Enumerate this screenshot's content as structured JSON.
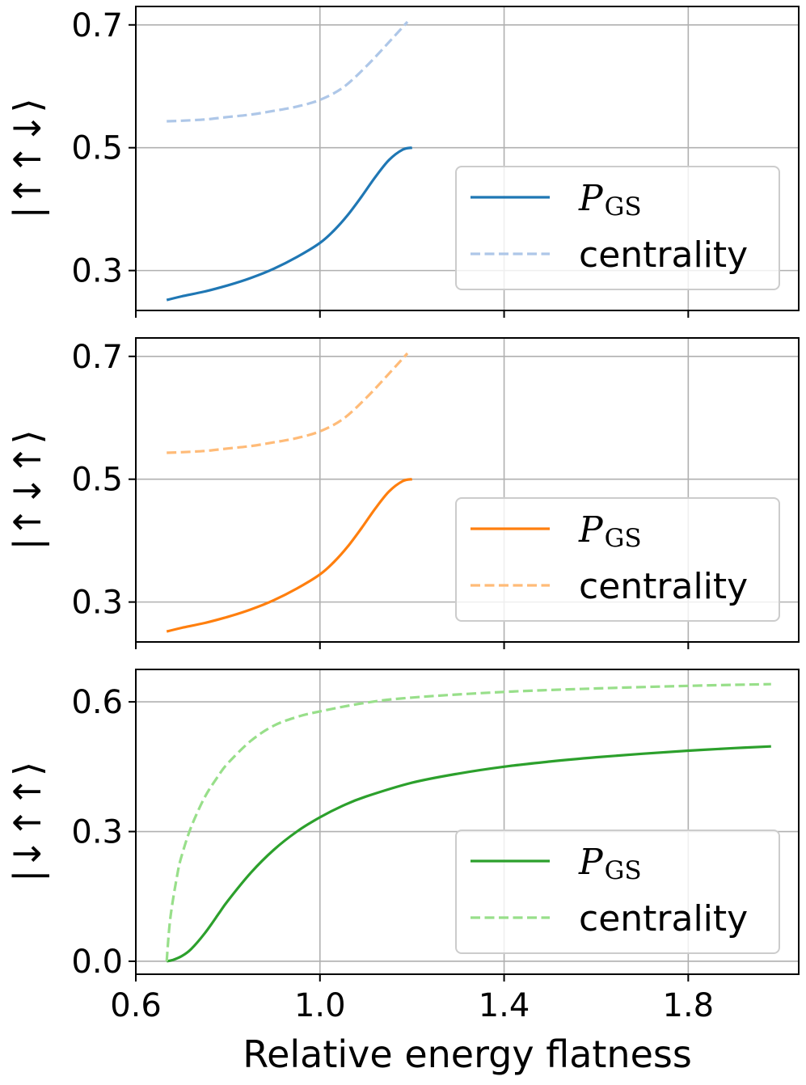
{
  "figure": {
    "xlabel": "Relative energy flatness",
    "x_ticks": [
      0.6,
      1.0,
      1.4,
      1.8
    ],
    "x_tick_labels": [
      "0.6",
      "1.0",
      "1.4",
      "1.8"
    ],
    "xlim": [
      0.6,
      2.04
    ]
  },
  "chart_data": [
    {
      "type": "line",
      "ylabel": "|↑↑↓⟩",
      "ylim": [
        0.235,
        0.73
      ],
      "y_ticks": [
        0.3,
        0.5,
        0.7
      ],
      "y_tick_labels": [
        "0.3",
        "0.5",
        "0.7"
      ],
      "grid": true,
      "legend_position": "lower-right",
      "series": [
        {
          "name": "P_GS",
          "label_main": "P",
          "label_sub": "GS",
          "style": "solid",
          "color": "#1f77b4",
          "x": [
            0.667,
            0.7,
            0.75,
            0.8,
            0.85,
            0.9,
            0.95,
            1.0,
            1.03,
            1.06,
            1.09,
            1.12,
            1.15,
            1.18,
            1.2
          ],
          "y": [
            0.252,
            0.258,
            0.266,
            0.276,
            0.288,
            0.303,
            0.322,
            0.345,
            0.365,
            0.39,
            0.42,
            0.452,
            0.48,
            0.497,
            0.5
          ]
        },
        {
          "name": "centrality",
          "label_main": "centrality",
          "style": "dashed",
          "color": "#aec7e8",
          "x": [
            0.667,
            0.7,
            0.75,
            0.8,
            0.85,
            0.9,
            0.95,
            1.0,
            1.05,
            1.1,
            1.15,
            1.19
          ],
          "y": [
            0.543,
            0.544,
            0.546,
            0.55,
            0.554,
            0.56,
            0.567,
            0.578,
            0.598,
            0.632,
            0.672,
            0.705
          ]
        }
      ]
    },
    {
      "type": "line",
      "ylabel": "|↑↓↑⟩",
      "ylim": [
        0.235,
        0.73
      ],
      "y_ticks": [
        0.3,
        0.5,
        0.7
      ],
      "y_tick_labels": [
        "0.3",
        "0.5",
        "0.7"
      ],
      "grid": true,
      "legend_position": "lower-right",
      "series": [
        {
          "name": "P_GS",
          "label_main": "P",
          "label_sub": "GS",
          "style": "solid",
          "color": "#ff7f0e",
          "x": [
            0.667,
            0.7,
            0.75,
            0.8,
            0.85,
            0.9,
            0.95,
            1.0,
            1.03,
            1.06,
            1.09,
            1.12,
            1.15,
            1.18,
            1.2
          ],
          "y": [
            0.252,
            0.258,
            0.266,
            0.276,
            0.288,
            0.303,
            0.322,
            0.345,
            0.365,
            0.39,
            0.42,
            0.452,
            0.48,
            0.497,
            0.5
          ]
        },
        {
          "name": "centrality",
          "label_main": "centrality",
          "style": "dashed",
          "color": "#ffbb78",
          "x": [
            0.667,
            0.7,
            0.75,
            0.8,
            0.85,
            0.9,
            0.95,
            1.0,
            1.05,
            1.1,
            1.15,
            1.19
          ],
          "y": [
            0.543,
            0.544,
            0.546,
            0.55,
            0.554,
            0.56,
            0.567,
            0.578,
            0.598,
            0.632,
            0.672,
            0.705
          ]
        }
      ]
    },
    {
      "type": "line",
      "ylabel": "|↓↑↑⟩",
      "ylim": [
        -0.03,
        0.675
      ],
      "y_ticks": [
        0.0,
        0.3,
        0.6
      ],
      "y_tick_labels": [
        "0.0",
        "0.3",
        "0.6"
      ],
      "grid": true,
      "legend_position": "lower-right",
      "series": [
        {
          "name": "P_GS",
          "label_main": "P",
          "label_sub": "GS",
          "style": "solid",
          "color": "#2ca02c",
          "x": [
            0.667,
            0.68,
            0.7,
            0.72,
            0.75,
            0.78,
            0.8,
            0.85,
            0.9,
            0.95,
            1.0,
            1.05,
            1.1,
            1.2,
            1.3,
            1.4,
            1.5,
            1.6,
            1.7,
            1.8,
            1.9,
            1.98
          ],
          "y": [
            0.0,
            0.003,
            0.012,
            0.028,
            0.065,
            0.11,
            0.14,
            0.205,
            0.258,
            0.3,
            0.333,
            0.36,
            0.381,
            0.413,
            0.434,
            0.45,
            0.462,
            0.472,
            0.48,
            0.487,
            0.493,
            0.497
          ]
        },
        {
          "name": "centrality",
          "label_main": "centrality",
          "style": "dashed",
          "color": "#98df8a",
          "x": [
            0.667,
            0.675,
            0.69,
            0.7,
            0.72,
            0.75,
            0.78,
            0.8,
            0.85,
            0.9,
            0.95,
            1.0,
            1.1,
            1.2,
            1.4,
            1.6,
            1.8,
            1.98
          ],
          "y": [
            0.0,
            0.1,
            0.2,
            0.245,
            0.31,
            0.38,
            0.43,
            0.458,
            0.51,
            0.545,
            0.565,
            0.578,
            0.598,
            0.61,
            0.623,
            0.631,
            0.637,
            0.641
          ]
        }
      ]
    }
  ]
}
